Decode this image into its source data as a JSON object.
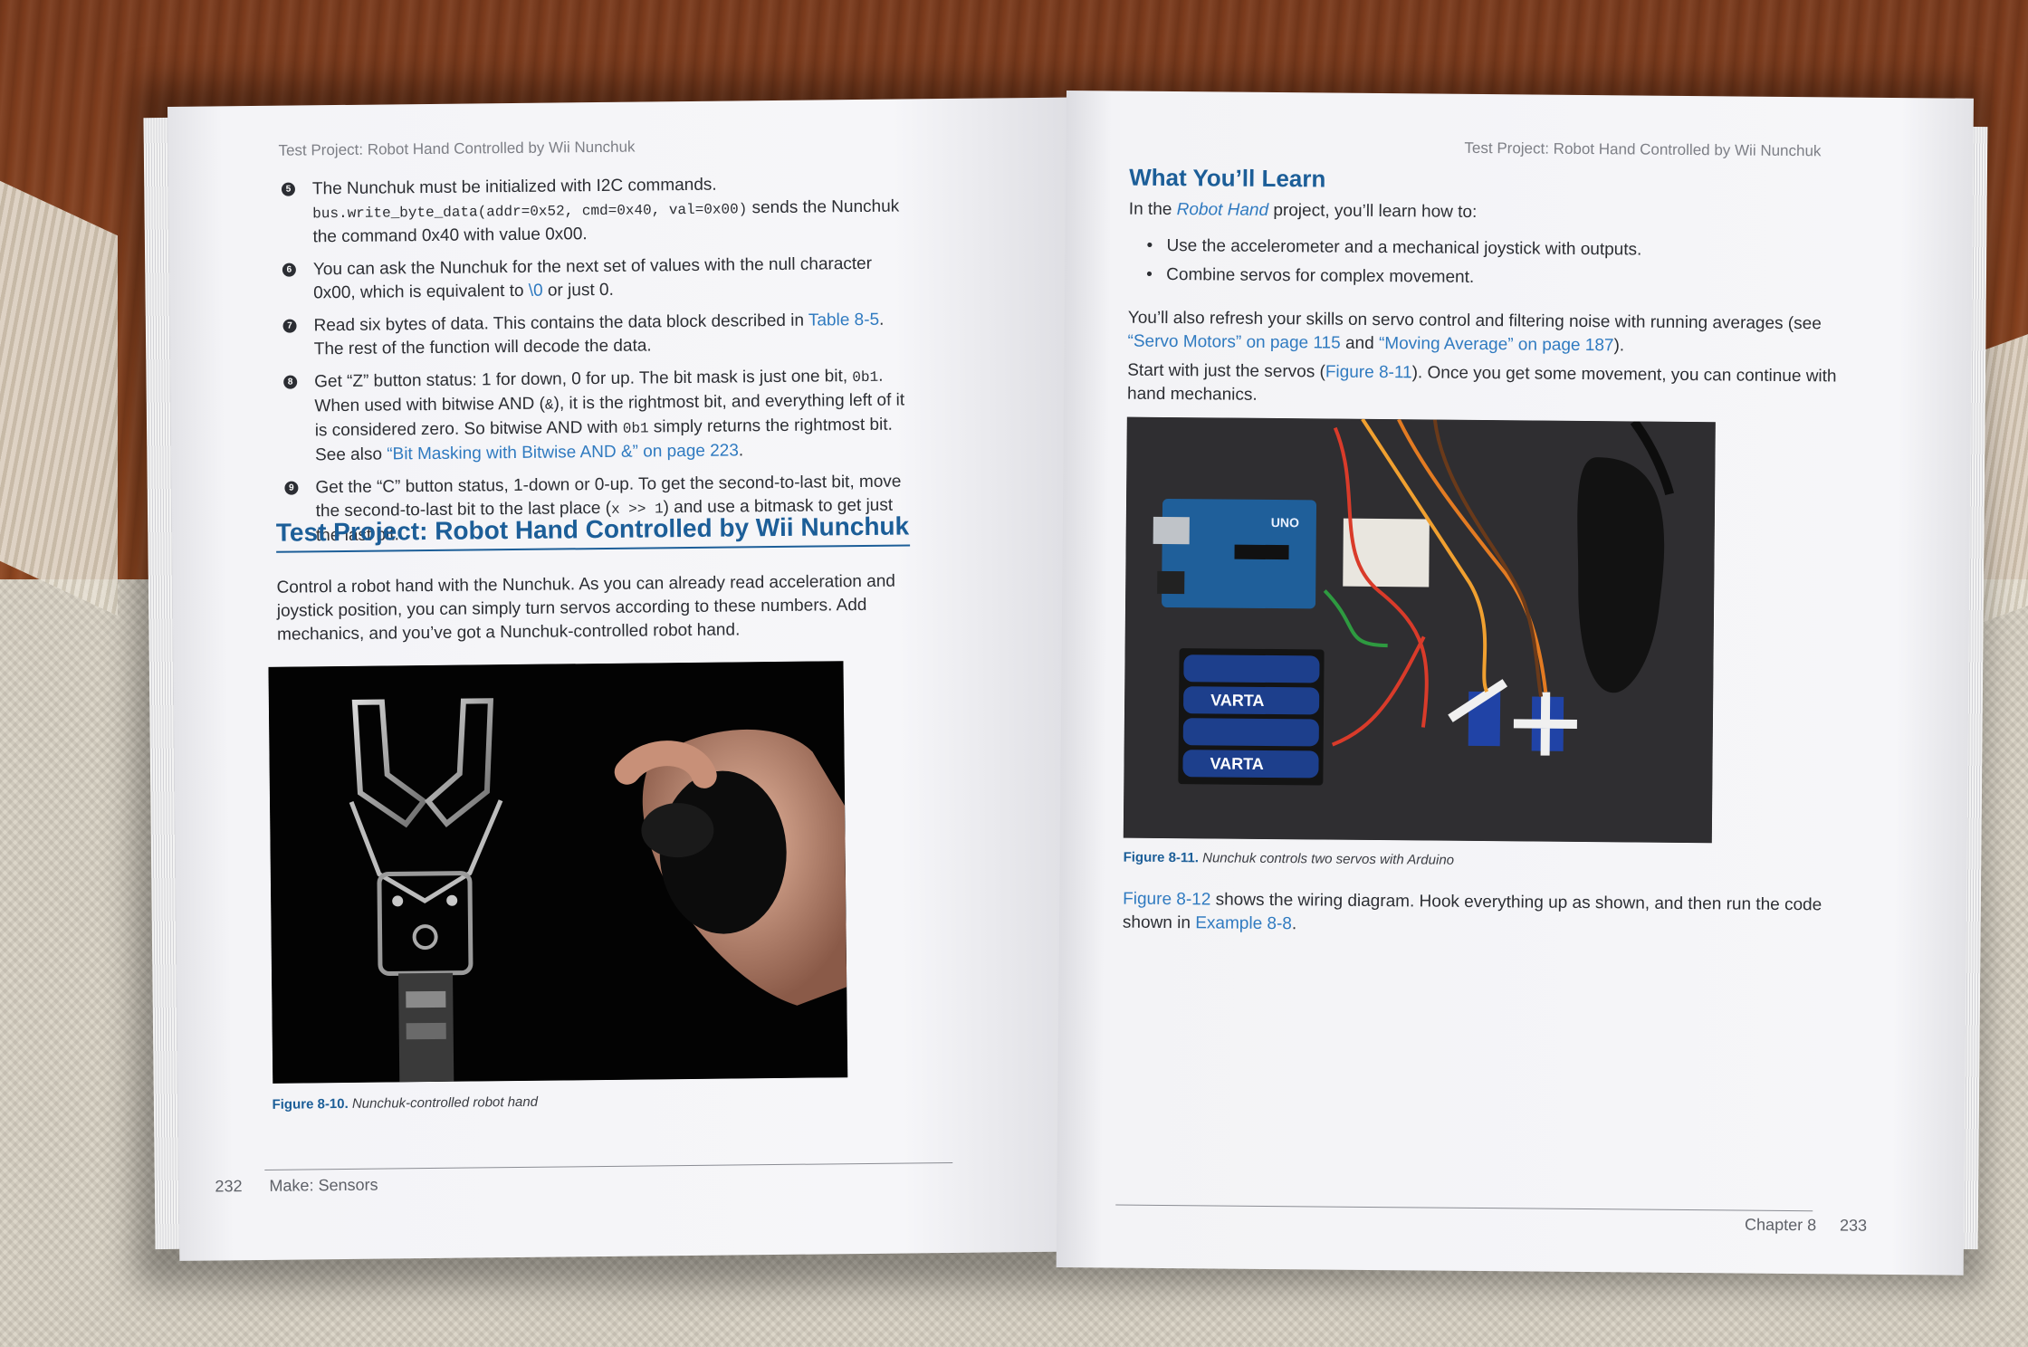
{
  "left_page": {
    "running_header": "Test Project: Robot Hand Controlled by Wii Nunchuk",
    "callouts": [
      {
        "marker": "5",
        "segments": [
          {
            "text": "The Nunchuk must be initialized with I2C commands. ",
            "style": "normal"
          },
          {
            "text": "bus.write_byte_data(addr=0x52, cmd=0x40, val=0x00)",
            "style": "mono"
          },
          {
            "text": " sends the Nunchuk the command 0x40 with value 0x00.",
            "style": "normal"
          }
        ]
      },
      {
        "marker": "6",
        "segments": [
          {
            "text": "You can ask the Nunchuk for the next set of values with the null character 0x00, which is equivalent to ",
            "style": "normal"
          },
          {
            "text": "\\0",
            "style": "link"
          },
          {
            "text": " or just 0.",
            "style": "normal"
          }
        ]
      },
      {
        "marker": "7",
        "segments": [
          {
            "text": "Read six bytes of data. This contains the data block described in ",
            "style": "normal"
          },
          {
            "text": "Table 8-5",
            "style": "link"
          },
          {
            "text": ". The rest of the function will decode the data.",
            "style": "normal"
          }
        ]
      },
      {
        "marker": "8",
        "segments": [
          {
            "text": "Get “Z” button status: 1 for down, 0 for up. The bit mask is just one bit, ",
            "style": "normal"
          },
          {
            "text": "0b1",
            "style": "mono"
          },
          {
            "text": ". When used with bitwise AND (",
            "style": "normal"
          },
          {
            "text": "&",
            "style": "mono"
          },
          {
            "text": "), it is the rightmost bit, and everything left of it is considered zero. So bitwise AND with ",
            "style": "normal"
          },
          {
            "text": "0b1",
            "style": "mono"
          },
          {
            "text": " simply returns the rightmost bit. See also ",
            "style": "normal"
          },
          {
            "text": "“Bit Masking with Bitwise AND &” on page 223",
            "style": "link"
          },
          {
            "text": ".",
            "style": "normal"
          }
        ]
      },
      {
        "marker": "9",
        "segments": [
          {
            "text": "Get the “C” button status, 1-down or 0-up. To get the second-to-last bit, move the second-to-last bit to the last place (",
            "style": "normal"
          },
          {
            "text": "x >> 1",
            "style": "mono"
          },
          {
            "text": ") and use a bitmask to get just the last bit.",
            "style": "normal"
          }
        ]
      }
    ],
    "section_title": "Test Project: Robot Hand Controlled by Wii Nunchuk",
    "section_body": "Control a robot hand with the Nunchuk. As you can already read acceleration and joystick position, you can simply turn servos according to these numbers. Add mechanics, and you’ve got a Nunchuk-controlled robot hand.",
    "figure": {
      "label": "Figure 8-10.",
      "caption": "Nunchuk-controlled robot hand"
    },
    "footer": {
      "page_number": "232",
      "book_title": "Make: Sensors"
    }
  },
  "right_page": {
    "running_header": "Test Project: Robot Hand Controlled by Wii Nunchuk",
    "learn_title": "What You’ll Learn",
    "learn_intro": {
      "before": "In the ",
      "link": "Robot Hand",
      "after": " project, you’ll learn how to:"
    },
    "bullets": [
      "Use the accelerometer and a mechanical joystick with outputs.",
      "Combine servos for complex movement."
    ],
    "refresh_para": [
      {
        "text": "You’ll also refresh your skills on servo control and filtering noise with running averages (see ",
        "style": "normal"
      },
      {
        "text": "“Servo Motors” on page 115",
        "style": "link"
      },
      {
        "text": " and ",
        "style": "normal"
      },
      {
        "text": "“Moving Average” on page 187",
        "style": "link"
      },
      {
        "text": ").",
        "style": "normal"
      }
    ],
    "start_para": [
      {
        "text": "Start with just the servos (",
        "style": "normal"
      },
      {
        "text": "Figure 8-11",
        "style": "link"
      },
      {
        "text": "). Once you get some movement, you can continue with hand mechanics.",
        "style": "normal"
      }
    ],
    "figure": {
      "label": "Figure 8-11.",
      "caption": "Nunchuk controls two servos with Arduino"
    },
    "wiring_para": [
      {
        "text": "Figure 8-12",
        "style": "link"
      },
      {
        "text": " shows the wiring diagram. Hook everything up as shown, and then run the code shown in ",
        "style": "normal"
      },
      {
        "text": "Example 8-8",
        "style": "link"
      },
      {
        "text": ".",
        "style": "normal"
      }
    ],
    "footer": {
      "chapter": "Chapter 8",
      "page_number": "233"
    }
  },
  "photo_labels": {
    "battery_brand": "VARTA",
    "board_brand": "UNO"
  }
}
